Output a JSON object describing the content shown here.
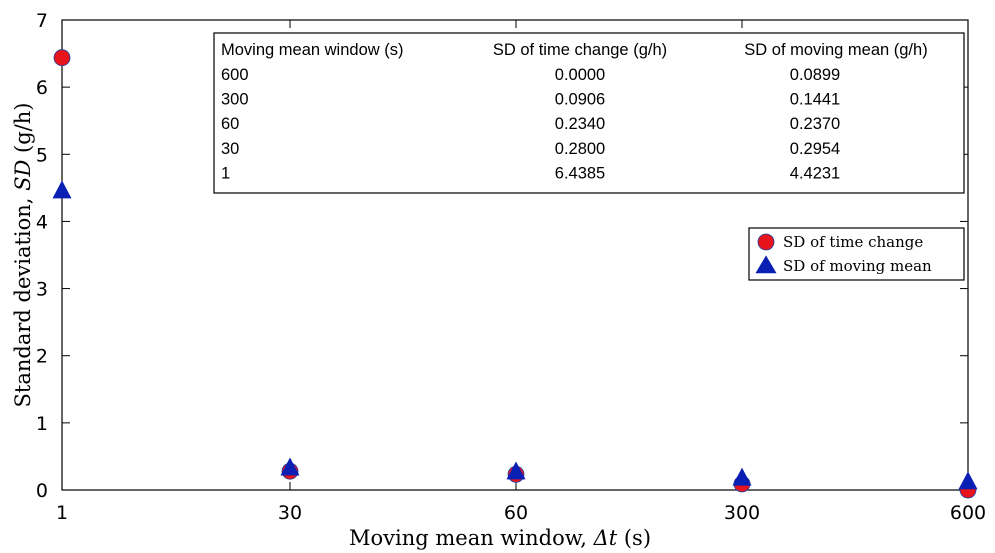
{
  "chart_data": {
    "type": "scatter",
    "xlabel": "Moving mean window, Δt (s)",
    "xlabel_prefix": "Moving mean window, ",
    "xlabel_var": "Δt",
    "xlabel_unit": " (s)",
    "ylabel": "Standard deviation, SD (g/h)",
    "ylabel_prefix": "Standard deviation, ",
    "ylabel_var": "SD",
    "ylabel_unit": " (g/h)",
    "categories": [
      "1",
      "30",
      "60",
      "300",
      "600"
    ],
    "ylim": [
      0,
      7
    ],
    "yticks": [
      0,
      1,
      2,
      3,
      4,
      5,
      6,
      7
    ],
    "series": [
      {
        "name": "SD of time change",
        "marker": "circle",
        "color": "#e8141b",
        "values": [
          6.4385,
          0.28,
          0.234,
          0.0906,
          0.0
        ]
      },
      {
        "name": "SD of moving mean",
        "marker": "triangle",
        "color": "#0a1fb4",
        "values": [
          4.4231,
          0.2954,
          0.237,
          0.1441,
          0.0899
        ]
      }
    ],
    "legend_position": "right",
    "grid": false
  },
  "table": {
    "headers": [
      "Moving mean window (s)",
      "SD of time change (g/h)",
      "SD of moving mean (g/h)"
    ],
    "rows": [
      [
        "600",
        "0.0000",
        "0.0899"
      ],
      [
        "300",
        "0.0906",
        "0.1441"
      ],
      [
        "60",
        "0.2340",
        "0.2370"
      ],
      [
        "30",
        "0.2800",
        "0.2954"
      ],
      [
        "1",
        "6.4385",
        "4.4231"
      ]
    ]
  }
}
